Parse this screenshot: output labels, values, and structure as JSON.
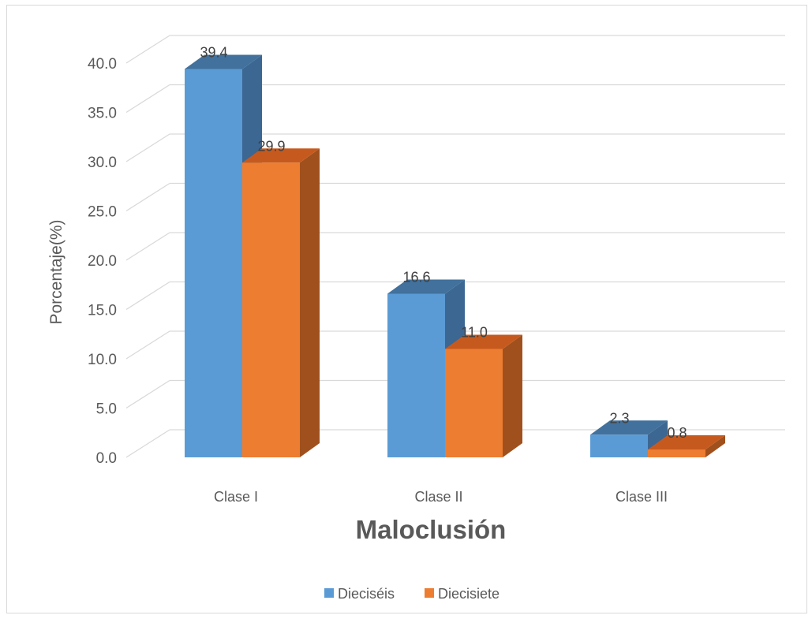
{
  "chart_data": {
    "type": "bar",
    "style": "3d-clustered-column",
    "categories": [
      "Clase I",
      "Clase II",
      "Clase III"
    ],
    "series": [
      {
        "name": "Dieciséis",
        "values": [
          39.4,
          16.6,
          2.3
        ],
        "color": "#5b9bd5",
        "top_color": "#41719c",
        "side_color": "#3c6793",
        "label_text": [
          "39.4",
          "16.6",
          "2.3"
        ]
      },
      {
        "name": "Diecisiete",
        "values": [
          29.9,
          11.0,
          0.8
        ],
        "color": "#ed7d31",
        "top_color": "#c65a1e",
        "side_color": "#a0501c",
        "label_text": [
          "29.9",
          "11.0",
          "0.8"
        ]
      }
    ],
    "xlabel": "Maloclusión",
    "ylabel": "Porcentaje(%)",
    "ylim": [
      0,
      40
    ],
    "yticks": [
      "0.0",
      "5.0",
      "10.0",
      "15.0",
      "20.0",
      "25.0",
      "30.0",
      "35.0",
      "40.0"
    ],
    "ytick_values": [
      0,
      5,
      10,
      15,
      20,
      25,
      30,
      35,
      40
    ],
    "grid": true,
    "legend_position": "bottom"
  }
}
